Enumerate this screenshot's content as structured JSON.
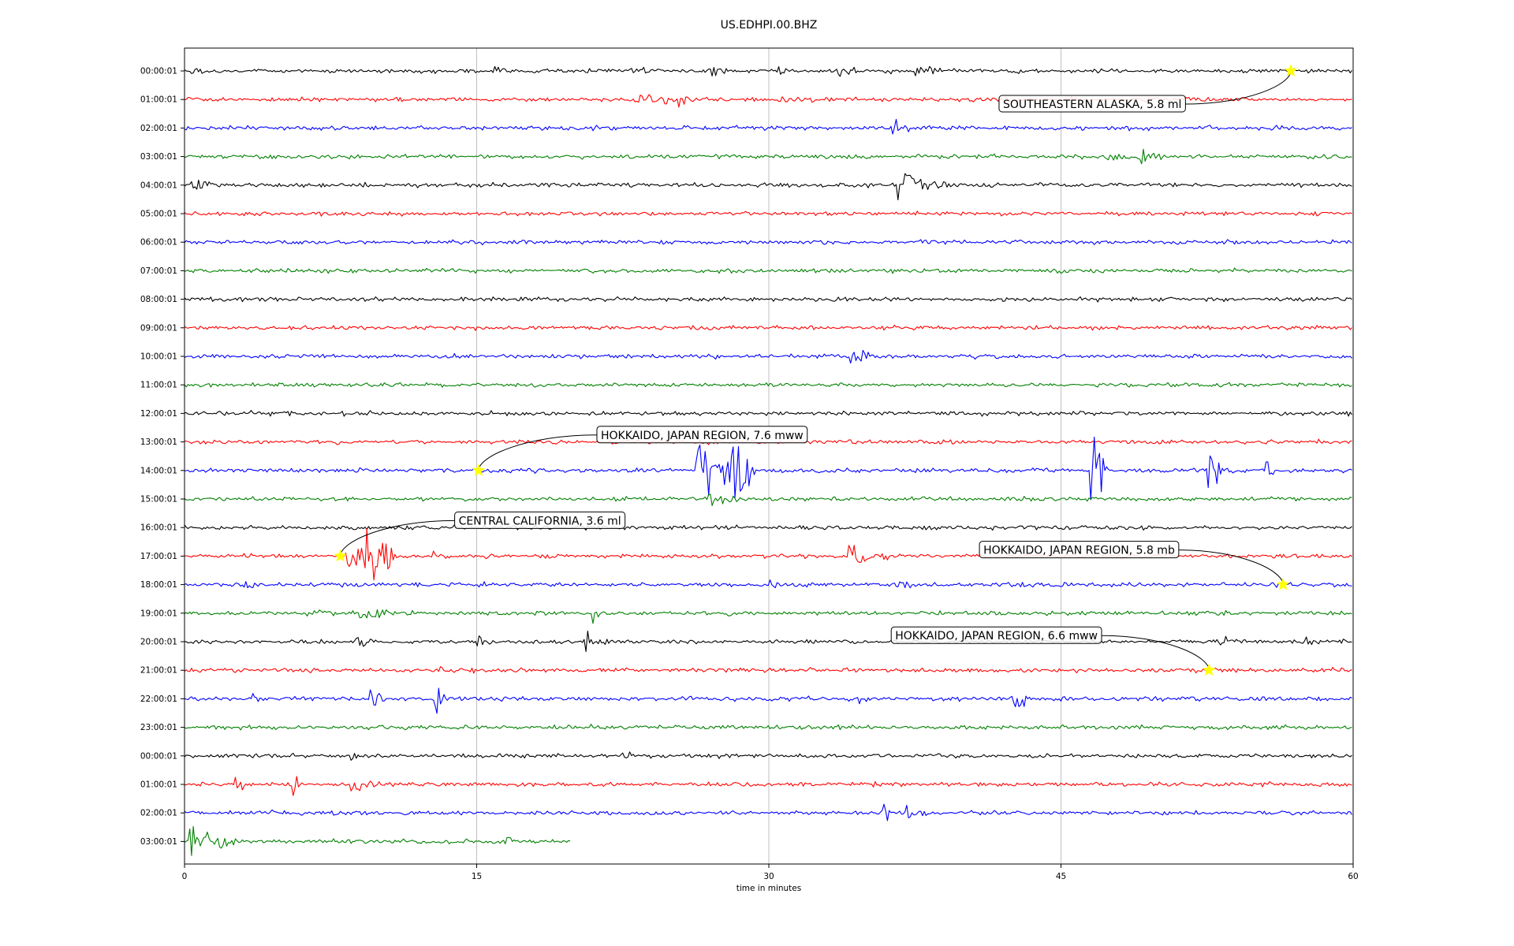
{
  "chart_data": {
    "type": "line",
    "title": "US.EDHPI.00.BHZ",
    "xlabel": "time in minutes",
    "xlim": [
      0,
      60
    ],
    "x_ticks": [
      "0",
      "15",
      "30",
      "45",
      "60"
    ],
    "grid": "vertical",
    "line_colors": [
      "#000000",
      "#ff0000",
      "#0000ff",
      "#008000"
    ],
    "marker_color": "#ffff00",
    "rows": [
      {
        "label": "00:00:01",
        "bursts": [
          [
            0.3,
            1.6,
            0.3
          ],
          [
            14.0,
            0.8,
            0.3
          ],
          [
            15.9,
            1.0,
            0.6
          ],
          [
            22.8,
            1.5,
            0.5
          ],
          [
            26.8,
            1.5,
            0.6
          ],
          [
            30.5,
            0.9,
            0.4
          ],
          [
            33.5,
            1.5,
            0.5
          ],
          [
            37.5,
            1.8,
            0.8
          ]
        ]
      },
      {
        "label": "01:00:01",
        "bursts": [
          [
            22.8,
            3.0,
            0.4
          ],
          [
            24.5,
            2.0,
            0.8
          ],
          [
            30.5,
            1.8,
            0.8
          ],
          [
            42.3,
            0.8,
            0.2
          ],
          [
            45.3,
            0.8,
            0.3
          ],
          [
            51.1,
            0.6,
            0.2
          ]
        ]
      },
      {
        "label": "02:00:01",
        "bursts": [
          [
            36.3,
            1.0,
            1.0
          ],
          [
            49.2,
            0.7,
            0.3
          ],
          [
            55.8,
            0.6,
            0.3
          ]
        ]
      },
      {
        "label": "03:00:01",
        "bursts": [
          [
            47.2,
            1.2,
            1.0
          ],
          [
            49.0,
            2.0,
            0.8
          ]
        ]
      },
      {
        "label": "04:00:01",
        "bursts": [
          [
            0.3,
            2.2,
            0.5
          ],
          [
            0.9,
            1.2,
            0.3
          ],
          [
            7.0,
            0.6,
            0.4
          ],
          [
            36.4,
            3.0,
            1.8
          ]
        ]
      },
      {
        "label": "05:00:01",
        "bursts": []
      },
      {
        "label": "06:00:01",
        "bursts": []
      },
      {
        "label": "07:00:01",
        "bursts": []
      },
      {
        "label": "08:00:01",
        "bursts": []
      },
      {
        "label": "09:00:01",
        "bursts": []
      },
      {
        "label": "10:00:01",
        "bursts": [
          [
            34.2,
            1.5,
            0.6
          ]
        ]
      },
      {
        "label": "11:00:01",
        "bursts": []
      },
      {
        "label": "12:00:01",
        "bursts": []
      },
      {
        "label": "13:00:01",
        "bursts": [
          [
            21.8,
            0.6,
            0.3
          ]
        ]
      },
      {
        "label": "14:00:01",
        "bursts": [
          [
            26.3,
            3.5,
            3.5
          ],
          [
            28.0,
            1.4,
            4.0
          ],
          [
            46.5,
            0.9,
            7.5
          ],
          [
            52.5,
            0.9,
            3.0
          ],
          [
            55.5,
            0.5,
            2.0
          ]
        ]
      },
      {
        "label": "15:00:01",
        "bursts": [
          [
            26.8,
            2.0,
            1.0
          ]
        ]
      },
      {
        "label": "16:00:01",
        "bursts": []
      },
      {
        "label": "17:00:01",
        "bursts": [
          [
            8.3,
            3.0,
            2.0
          ],
          [
            9.2,
            1.8,
            3.5
          ],
          [
            12.6,
            0.8,
            0.4
          ],
          [
            34.0,
            2.5,
            1.2
          ],
          [
            50.0,
            0.8,
            0.3
          ]
        ]
      },
      {
        "label": "18:00:01",
        "bursts": [
          [
            3.0,
            1.0,
            0.6
          ],
          [
            30.0,
            0.8,
            0.6
          ],
          [
            36.4,
            1.0,
            0.8
          ]
        ]
      },
      {
        "label": "19:00:01",
        "bursts": [
          [
            6.3,
            1.0,
            1.0
          ],
          [
            9.0,
            1.5,
            1.5
          ],
          [
            20.8,
            1.0,
            1.0
          ],
          [
            27.8,
            1.0,
            0.8
          ]
        ]
      },
      {
        "label": "20:00:01",
        "bursts": [
          [
            8.8,
            1.3,
            1.2
          ],
          [
            15.0,
            0.9,
            0.6
          ],
          [
            20.5,
            1.5,
            1.3
          ],
          [
            53.0,
            0.9,
            0.6
          ],
          [
            57.6,
            0.6,
            1.0
          ]
        ]
      },
      {
        "label": "21:00:01",
        "bursts": [
          [
            11.2,
            0.7,
            0.4
          ],
          [
            12.9,
            0.7,
            0.5
          ],
          [
            14.6,
            0.6,
            0.3
          ],
          [
            57.9,
            2.6,
            0.3
          ]
        ]
      },
      {
        "label": "22:00:01",
        "bursts": [
          [
            3.5,
            0.6,
            1.0
          ],
          [
            9.5,
            0.8,
            1.5
          ],
          [
            12.8,
            1.0,
            2.0
          ],
          [
            34.5,
            0.8,
            0.8
          ],
          [
            42.5,
            1.2,
            2.5
          ]
        ]
      },
      {
        "label": "23:00:01",
        "bursts": []
      },
      {
        "label": "00:00:01",
        "bursts": [
          [
            8.5,
            0.7,
            0.4
          ],
          [
            22.5,
            0.6,
            0.6
          ]
        ]
      },
      {
        "label": "01:00:01",
        "bursts": [
          [
            2.6,
            0.7,
            1.8
          ],
          [
            5.5,
            0.6,
            1.5
          ],
          [
            8.5,
            1.8,
            0.7
          ]
        ]
      },
      {
        "label": "02:00:01",
        "bursts": [
          [
            35.8,
            1.2,
            1.2
          ],
          [
            37.0,
            1.0,
            0.8
          ]
        ]
      },
      {
        "label": "03:00:01",
        "bursts": [
          [
            0.2,
            1.5,
            2.5
          ],
          [
            1.5,
            1.3,
            1.0
          ],
          [
            16.5,
            0.8,
            0.6
          ]
        ]
      }
    ],
    "last_row_end_minute": 19.8,
    "events": [
      {
        "label": "SOUTHEASTERN ALASKA, 5.8 ml",
        "row": 0,
        "minute": 56.8
      },
      {
        "label": "HOKKAIDO, JAPAN REGION, 7.6 mww",
        "row": 14,
        "minute": 15.1
      },
      {
        "label": "CENTRAL CALIFORNIA, 3.6 ml",
        "row": 17,
        "minute": 8.0
      },
      {
        "label": "HOKKAIDO, JAPAN REGION, 5.8 mb",
        "row": 18,
        "minute": 56.4
      },
      {
        "label": "HOKKAIDO, JAPAN REGION, 6.6 mww",
        "row": 21,
        "minute": 52.6
      }
    ]
  }
}
